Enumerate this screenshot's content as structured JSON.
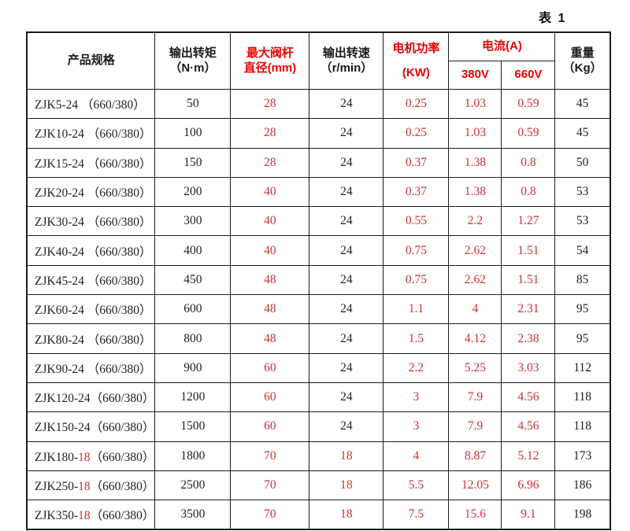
{
  "caption": "表 1",
  "colors": {
    "header_red": "#ee0000",
    "cell_red": "#cc3333",
    "border": "#1c1c1c"
  },
  "table": {
    "header": {
      "product": "产品规格",
      "torque_line1": "输出转矩",
      "torque_line2": "（N·m）",
      "stem_line1": "最大阀杆",
      "stem_line2": "直径(mm)",
      "speed_line1": "输出转速",
      "speed_line2": "（r/min）",
      "power_line1": "电机功率",
      "power_line2": "(KW)",
      "current": "电流(A)",
      "v380": "380V",
      "v660": "660V",
      "weight_line1": "重量",
      "weight_line2": "（Kg）"
    },
    "rows": [
      {
        "model": "ZJK5-24 （660/380）",
        "torque": "50",
        "stem": "28",
        "speed": "24",
        "speed_red": false,
        "power": "0.25",
        "a380": "1.03",
        "a660": "0.59",
        "weight": "45"
      },
      {
        "model": "ZJK10-24 （660/380）",
        "torque": "100",
        "stem": "28",
        "speed": "24",
        "speed_red": false,
        "power": "0.25",
        "a380": "1.03",
        "a660": "0.59",
        "weight": "45"
      },
      {
        "model": "ZJK15-24 （660/380）",
        "torque": "150",
        "stem": "28",
        "speed": "24",
        "speed_red": false,
        "power": "0.37",
        "a380": "1.38",
        "a660": "0.8",
        "weight": "50"
      },
      {
        "model": "ZJK20-24 （660/380）",
        "torque": "200",
        "stem": "40",
        "speed": "24",
        "speed_red": false,
        "power": "0.37",
        "a380": "1.38",
        "a660": "0.8",
        "weight": "53"
      },
      {
        "model": "ZJK30-24 （660/380）",
        "torque": "300",
        "stem": "40",
        "speed": "24",
        "speed_red": false,
        "power": "0.55",
        "a380": "2.2",
        "a660": "1.27",
        "weight": "53"
      },
      {
        "model": "ZJK40-24 （660/380）",
        "torque": "400",
        "stem": "40",
        "speed": "24",
        "speed_red": false,
        "power": "0.75",
        "a380": "2.62",
        "a660": "1.51",
        "weight": "54"
      },
      {
        "model": "ZJK45-24 （660/380）",
        "torque": "450",
        "stem": "48",
        "speed": "24",
        "speed_red": false,
        "power": "0.75",
        "a380": "2.62",
        "a660": "1.51",
        "weight": "85"
      },
      {
        "model": "ZJK60-24 （660/380）",
        "torque": "600",
        "stem": "48",
        "speed": "24",
        "speed_red": false,
        "power": "1.1",
        "a380": "4",
        "a660": "2.31",
        "weight": "95"
      },
      {
        "model": "ZJK80-24 （660/380）",
        "torque": "800",
        "stem": "48",
        "speed": "24",
        "speed_red": false,
        "power": "1.5",
        "a380": "4.12",
        "a660": "2.38",
        "weight": "95"
      },
      {
        "model": "ZJK90-24 （660/380）",
        "torque": "900",
        "stem": "60",
        "speed": "24",
        "speed_red": false,
        "power": "2.2",
        "a380": "5.25",
        "a660": "3.03",
        "weight": "112"
      },
      {
        "model": "ZJK120-24（660/380）",
        "torque": "1200",
        "stem": "60",
        "speed": "24",
        "speed_red": false,
        "power": "3",
        "a380": "7.9",
        "a660": "4.56",
        "weight": "118"
      },
      {
        "model": "ZJK150-24（660/380）",
        "torque": "1500",
        "stem": "60",
        "speed": "24",
        "speed_red": false,
        "power": "3",
        "a380": "7.9",
        "a660": "4.56",
        "weight": "118"
      },
      {
        "model_prefix": "ZJK180-",
        "model_red": "18",
        "model_suffix": "（660/380）",
        "torque": "1800",
        "stem": "70",
        "speed": "18",
        "speed_red": true,
        "power": "4",
        "a380": "8.87",
        "a660": "5.12",
        "weight": "173"
      },
      {
        "model_prefix": "ZJK250-",
        "model_red": "18",
        "model_suffix": "（660/380）",
        "torque": "2500",
        "stem": "70",
        "speed": "18",
        "speed_red": true,
        "power": "5.5",
        "a380": "12.05",
        "a660": "6.96",
        "weight": "186"
      },
      {
        "model_prefix": "ZJK350-",
        "model_red": "18",
        "model_suffix": "（660/380）",
        "torque": "3500",
        "stem": "70",
        "speed": "18",
        "speed_red": true,
        "power": "7.5",
        "a380": "15.6",
        "a660": "9.1",
        "weight": "198"
      }
    ]
  }
}
